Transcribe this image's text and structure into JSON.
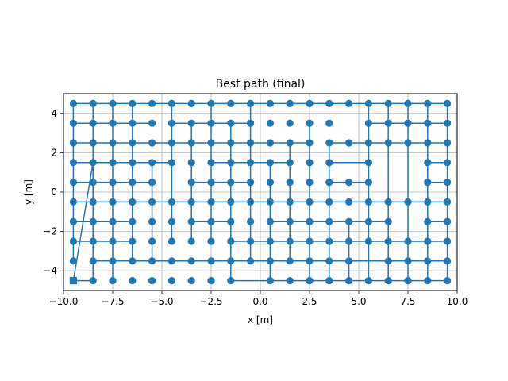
{
  "chart_data": {
    "type": "scatter",
    "title": "Best path (final)",
    "xlabel": "x [m]",
    "ylabel": "y [m]",
    "xlim": [
      -10.0,
      10.0
    ],
    "ylim": [
      -5.0,
      5.0
    ],
    "xticks": [
      -10.0,
      -7.5,
      -5.0,
      -2.5,
      0.0,
      2.5,
      5.0,
      7.5,
      10.0
    ],
    "xtick_labels": [
      "−10.0",
      "−7.5",
      "−5.0",
      "−2.5",
      "0.0",
      "2.5",
      "5.0",
      "7.5",
      "10.0"
    ],
    "yticks": [
      -4,
      -2,
      0,
      2,
      4
    ],
    "ytick_labels": [
      "−4",
      "−2",
      "0",
      "2",
      "4"
    ],
    "grid": true,
    "color": "#1f77b4",
    "grid_x_values": [
      -9.5,
      -8.5,
      -7.5,
      -6.5,
      -5.5,
      -4.5,
      -3.5,
      -2.5,
      -1.5,
      -0.5,
      0.5,
      1.5,
      2.5,
      3.5,
      4.5,
      5.5,
      6.5,
      7.5,
      8.5,
      9.5
    ],
    "grid_y_values": [
      -4.5,
      -3.5,
      -2.5,
      -1.5,
      -0.5,
      0.5,
      1.5,
      2.5,
      3.5,
      4.5
    ],
    "start_point": {
      "x": -9.5,
      "y": -4.5,
      "marker": "square"
    },
    "path_segments": [
      [
        [
          -9.5,
          4.5
        ],
        [
          9.5,
          4.5
        ]
      ],
      [
        [
          -9.5,
          3.5
        ],
        [
          -5.5,
          3.5
        ]
      ],
      [
        [
          -4.5,
          3.5
        ],
        [
          -0.5,
          3.5
        ]
      ],
      [
        [
          5.5,
          3.5
        ],
        [
          9.5,
          3.5
        ]
      ],
      [
        [
          -9.5,
          2.5
        ],
        [
          2.5,
          2.5
        ]
      ],
      [
        [
          3.5,
          2.5
        ],
        [
          9.5,
          2.5
        ]
      ],
      [
        [
          -9.5,
          1.5
        ],
        [
          -4.5,
          1.5
        ]
      ],
      [
        [
          -2.5,
          1.5
        ],
        [
          1.5,
          1.5
        ]
      ],
      [
        [
          3.5,
          1.5
        ],
        [
          5.5,
          1.5
        ]
      ],
      [
        [
          8.5,
          1.5
        ],
        [
          9.5,
          1.5
        ]
      ],
      [
        [
          -9.5,
          0.5
        ],
        [
          -5.5,
          0.5
        ]
      ],
      [
        [
          -3.5,
          0.5
        ],
        [
          -0.5,
          0.5
        ]
      ],
      [
        [
          3.5,
          0.5
        ],
        [
          5.5,
          0.5
        ]
      ],
      [
        [
          8.5,
          0.5
        ],
        [
          9.5,
          0.5
        ]
      ],
      [
        [
          -9.5,
          -0.5
        ],
        [
          9.5,
          -0.5
        ]
      ],
      [
        [
          -9.5,
          -1.5
        ],
        [
          -6.5,
          -1.5
        ]
      ],
      [
        [
          -3.5,
          -1.5
        ],
        [
          -1.5,
          -1.5
        ]
      ],
      [
        [
          0.5,
          -1.5
        ],
        [
          6.5,
          -1.5
        ]
      ],
      [
        [
          8.5,
          -1.5
        ],
        [
          9.5,
          -1.5
        ]
      ],
      [
        [
          -9.5,
          -2.5
        ],
        [
          -6.5,
          -2.5
        ]
      ],
      [
        [
          -1.5,
          -2.5
        ],
        [
          9.5,
          -2.5
        ]
      ],
      [
        [
          -8.5,
          -3.5
        ],
        [
          9.5,
          -3.5
        ]
      ],
      [
        [
          -9.5,
          -4.5
        ],
        [
          -8.5,
          -4.5
        ]
      ],
      [
        [
          -1.5,
          -4.5
        ],
        [
          9.5,
          -4.5
        ]
      ],
      [
        [
          -9.5,
          -4.5
        ],
        [
          -8.5,
          1.5
        ]
      ],
      [
        [
          -9.5,
          -3.5
        ],
        [
          -9.5,
          4.5
        ]
      ],
      [
        [
          -8.5,
          -4.5
        ],
        [
          -8.5,
          4.5
        ]
      ],
      [
        [
          -7.5,
          -4.5
        ],
        [
          -7.5,
          4.5
        ]
      ],
      [
        [
          -6.5,
          -3.5
        ],
        [
          -6.5,
          4.5
        ]
      ],
      [
        [
          -5.5,
          -3.5
        ],
        [
          -5.5,
          1.5
        ]
      ],
      [
        [
          -4.5,
          -2.5
        ],
        [
          -4.5,
          4.5
        ]
      ],
      [
        [
          -3.5,
          -2.5
        ],
        [
          -3.5,
          3.5
        ]
      ],
      [
        [
          -2.5,
          -2.5
        ],
        [
          -2.5,
          4.5
        ]
      ],
      [
        [
          -1.5,
          -4.5
        ],
        [
          -1.5,
          3.5
        ]
      ],
      [
        [
          -0.5,
          -3.5
        ],
        [
          -0.5,
          4.5
        ]
      ],
      [
        [
          0.5,
          -4.5
        ],
        [
          0.5,
          1.5
        ]
      ],
      [
        [
          1.5,
          -3.5
        ],
        [
          1.5,
          2.5
        ]
      ],
      [
        [
          2.5,
          -4.5
        ],
        [
          2.5,
          3.5
        ]
      ],
      [
        [
          3.5,
          -4.5
        ],
        [
          3.5,
          2.5
        ]
      ],
      [
        [
          4.5,
          -4.5
        ],
        [
          4.5,
          -1.5
        ]
      ],
      [
        [
          5.5,
          -4.5
        ],
        [
          5.5,
          4.5
        ]
      ],
      [
        [
          6.5,
          -4.5
        ],
        [
          6.5,
          4.5
        ]
      ],
      [
        [
          7.5,
          -4.5
        ],
        [
          7.5,
          4.5
        ]
      ],
      [
        [
          8.5,
          -4.5
        ],
        [
          8.5,
          4.5
        ]
      ],
      [
        [
          9.5,
          -4.5
        ],
        [
          9.5,
          4.5
        ]
      ]
    ],
    "points_absent": [
      [
        -9.5,
        -4.0
      ],
      [
        -0.5,
        -4.5
      ],
      [
        -4.5,
        0.5
      ],
      [
        4.5,
        3.5
      ],
      [
        4.5,
        1.5
      ],
      [
        6.5,
        1.5
      ],
      [
        6.5,
        0.5
      ],
      [
        7.5,
        1.5
      ],
      [
        7.5,
        0.5
      ],
      [
        7.5,
        -1.5
      ],
      [
        5.5,
        -3.5
      ]
    ]
  }
}
